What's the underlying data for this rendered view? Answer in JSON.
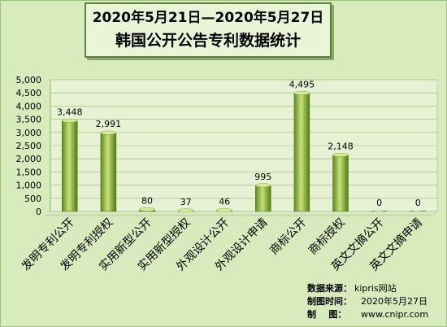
{
  "title": {
    "line1": "2020年5月21日—2020年5月27日",
    "line2": "韩国公开公告专利数据统计"
  },
  "chart_data": {
    "type": "bar",
    "categories": [
      "发明专利公开",
      "发明专利授权",
      "实用新型公开",
      "实用新型授权",
      "外观设计公开",
      "外观设计申请",
      "商标公开",
      "商标授权",
      "英文文摘公开",
      "英文文摘申请"
    ],
    "values": [
      3448,
      2991,
      80,
      37,
      46,
      995,
      4495,
      2148,
      0,
      0
    ],
    "value_labels": [
      "3,448",
      "2,991",
      "80",
      "37",
      "46",
      "995",
      "4,495",
      "2,148",
      "0",
      "0"
    ],
    "yticks": [
      0,
      500,
      1000,
      1500,
      2000,
      2500,
      3000,
      3500,
      4000,
      4500,
      5000
    ],
    "ytick_labels": [
      "0",
      "500",
      "1,000",
      "1,500",
      "2,000",
      "2,500",
      "3,000",
      "3,500",
      "4,000",
      "4,500",
      "5,000"
    ],
    "ylim": [
      0,
      5000
    ],
    "grid": true,
    "bar_color": "#7aa82e",
    "title": "",
    "xlabel": "",
    "ylabel": ""
  },
  "note": {
    "source_label": "数据来源：",
    "source_value": "kipris网站",
    "date_label": "制图时间：",
    "date_value": "2020年5月27日",
    "maker_label": "制    图：",
    "maker_value": "www.cnipr.com"
  },
  "colors": {
    "background": "#d7ebbd",
    "plot_background": "#e6f2d3",
    "bar_light": "#c8e07a",
    "bar_dark": "#5b8a1e"
  }
}
